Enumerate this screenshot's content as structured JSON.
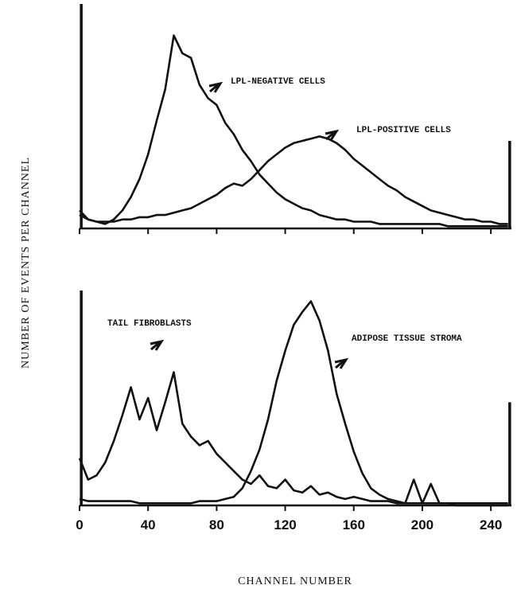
{
  "chart_data": [
    {
      "type": "line",
      "ylabel": "NUMBER OF EVENTS PER CHANNEL",
      "show_tick_labels": false,
      "xlim": [
        0,
        252
      ],
      "ylim": [
        0,
        100
      ],
      "xticks": [
        0,
        40,
        80,
        120,
        160,
        200,
        240
      ],
      "x": [
        0,
        5,
        10,
        15,
        20,
        25,
        30,
        35,
        40,
        45,
        50,
        55,
        60,
        65,
        70,
        75,
        80,
        85,
        90,
        95,
        100,
        105,
        110,
        115,
        120,
        125,
        130,
        135,
        140,
        145,
        150,
        155,
        160,
        165,
        170,
        175,
        180,
        185,
        190,
        195,
        200,
        205,
        210,
        215,
        220,
        225,
        230,
        235,
        240,
        245,
        250
      ],
      "series": [
        {
          "color": "#111111",
          "values": [
            6,
            4,
            3,
            2,
            4,
            8,
            14,
            22,
            33,
            48,
            62,
            86,
            78,
            76,
            64,
            58,
            55,
            47,
            42,
            35,
            30,
            24,
            20,
            16,
            13,
            11,
            9,
            8,
            6,
            5,
            4,
            4,
            3,
            3,
            3,
            2,
            2,
            2,
            2,
            2,
            2,
            2,
            2,
            1,
            1,
            1,
            1,
            1,
            1,
            1,
            1
          ]
        },
        {
          "color": "#111111",
          "values": [
            8,
            4,
            3,
            3,
            3,
            4,
            4,
            5,
            5,
            6,
            6,
            7,
            8,
            9,
            11,
            13,
            15,
            18,
            20,
            19,
            22,
            26,
            30,
            33,
            36,
            38,
            39,
            40,
            41,
            40,
            38,
            35,
            31,
            28,
            25,
            22,
            19,
            17,
            14,
            12,
            10,
            8,
            7,
            6,
            5,
            4,
            4,
            3,
            3,
            2,
            2
          ]
        }
      ],
      "spikes": {
        "x": [
          1,
          251
        ],
        "values": [
          100,
          39
        ]
      },
      "annotations": [
        "LPL-NEGATIVE CELLS",
        "LPL-POSITIVE CELLS"
      ]
    },
    {
      "type": "line",
      "xlabel": "CHANNEL NUMBER",
      "show_tick_labels": true,
      "xlim": [
        0,
        252
      ],
      "ylim": [
        0,
        100
      ],
      "xticks": [
        0,
        40,
        80,
        120,
        160,
        200,
        240
      ],
      "x": [
        0,
        5,
        10,
        15,
        20,
        25,
        30,
        35,
        40,
        45,
        50,
        55,
        60,
        65,
        70,
        75,
        80,
        85,
        90,
        95,
        100,
        105,
        110,
        115,
        120,
        125,
        130,
        135,
        140,
        145,
        150,
        155,
        160,
        165,
        170,
        175,
        180,
        185,
        190,
        195,
        200,
        205,
        210,
        215,
        220,
        225,
        230,
        235,
        240,
        245,
        250
      ],
      "series": [
        {
          "color": "#111111",
          "values": [
            22,
            12,
            14,
            20,
            30,
            42,
            55,
            40,
            50,
            35,
            48,
            62,
            38,
            32,
            28,
            30,
            24,
            20,
            16,
            12,
            10,
            14,
            9,
            8,
            12,
            7,
            6,
            9,
            5,
            6,
            4,
            3,
            4,
            3,
            2,
            2,
            2,
            1,
            1,
            12,
            1,
            10,
            1,
            1,
            0,
            0,
            0,
            0,
            0,
            0,
            0
          ]
        },
        {
          "color": "#111111",
          "values": [
            3,
            2,
            2,
            2,
            2,
            2,
            2,
            1,
            1,
            1,
            1,
            1,
            1,
            1,
            2,
            2,
            2,
            3,
            4,
            8,
            16,
            26,
            40,
            58,
            72,
            84,
            90,
            95,
            86,
            72,
            52,
            38,
            25,
            15,
            8,
            5,
            3,
            2,
            1,
            1,
            1,
            1,
            1,
            1,
            1,
            1,
            1,
            1,
            1,
            1,
            1
          ]
        }
      ],
      "spikes": {
        "x": [
          1,
          251
        ],
        "values": [
          100,
          48
        ]
      },
      "annotations": [
        "TAIL FIBROBLASTS",
        "ADIPOSE TISSUE STROMA"
      ]
    }
  ]
}
